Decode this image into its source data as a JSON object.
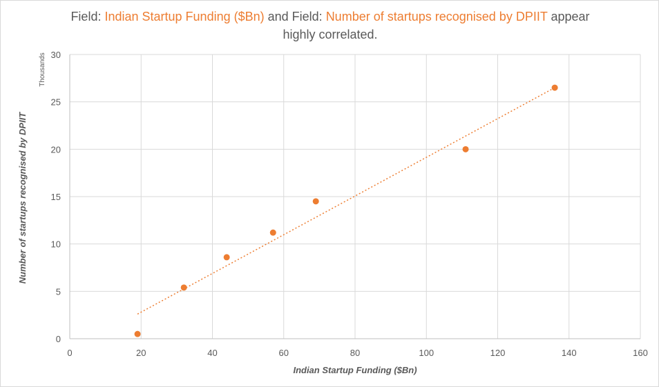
{
  "title": {
    "prefix": "Field: ",
    "field1": "Indian Startup Funding ($Bn)",
    "middle": " and Field: ",
    "field2": "Number of startups recognised by DPIIT",
    "suffix": " appear",
    "line2": "highly correlated."
  },
  "colors": {
    "accent": "#ed7d31",
    "text": "#595959",
    "grid": "#d9d9d9"
  },
  "chart_data": {
    "type": "scatter",
    "title": "Field: Indian Startup Funding ($Bn) and Field: Number of startups recognised by DPIIT appear highly correlated.",
    "xlabel": "Indian Startup Funding ($Bn)",
    "ylabel": "Number of startups recognised by DPIIT",
    "y_unit_label": "Thousands",
    "xlim": [
      0,
      160
    ],
    "ylim": [
      0,
      30
    ],
    "x_ticks": [
      0,
      20,
      40,
      60,
      80,
      100,
      120,
      140,
      160
    ],
    "y_ticks": [
      0,
      5,
      10,
      15,
      20,
      25,
      30
    ],
    "grid": true,
    "trendline": {
      "type": "linear",
      "style": "dotted",
      "x_range": [
        19,
        136
      ],
      "y_range": [
        2.6,
        26.5
      ]
    },
    "points": [
      {
        "x": 19,
        "y": 0.5
      },
      {
        "x": 32,
        "y": 5.4
      },
      {
        "x": 44,
        "y": 8.6
      },
      {
        "x": 57,
        "y": 11.2
      },
      {
        "x": 69,
        "y": 14.5
      },
      {
        "x": 111,
        "y": 20.0
      },
      {
        "x": 136,
        "y": 26.5
      }
    ]
  }
}
